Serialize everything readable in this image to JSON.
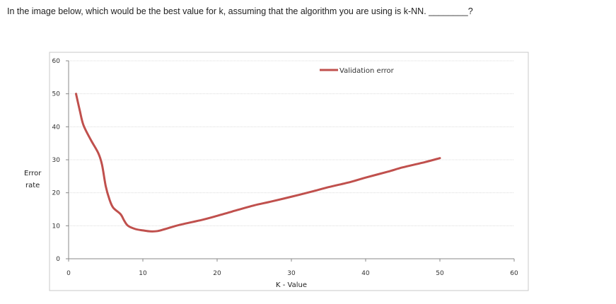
{
  "question": {
    "text": "In the image below, which would be the best value for k, assuming that the algorithm you are using is k-NN. ________?"
  },
  "chart_data": {
    "type": "line",
    "xlabel": "K - Value",
    "ylabel_line1": "Error",
    "ylabel_line2": "rate",
    "xlim": [
      0,
      60
    ],
    "ylim": [
      0,
      60
    ],
    "x_ticks": [
      0,
      10,
      20,
      30,
      40,
      50,
      60
    ],
    "y_ticks": [
      0,
      10,
      20,
      30,
      40,
      50,
      60
    ],
    "grid": true,
    "legend_position": "top-right",
    "line_color": "#c0504d",
    "series": [
      {
        "name": "Validation error",
        "points": [
          [
            1,
            50
          ],
          [
            1.5,
            45
          ],
          [
            2,
            40.5
          ],
          [
            3,
            36
          ],
          [
            4,
            32
          ],
          [
            4.5,
            28.5
          ],
          [
            5,
            22
          ],
          [
            5.5,
            18
          ],
          [
            6,
            15.5
          ],
          [
            7,
            13.5
          ],
          [
            7.5,
            11.5
          ],
          [
            8,
            10
          ],
          [
            9,
            9
          ],
          [
            10,
            8.6
          ],
          [
            11,
            8.3
          ],
          [
            12,
            8.4
          ],
          [
            13,
            9
          ],
          [
            15,
            10.3
          ],
          [
            18,
            11.8
          ],
          [
            20,
            13
          ],
          [
            22,
            14.3
          ],
          [
            25,
            16.2
          ],
          [
            27,
            17.2
          ],
          [
            30,
            18.8
          ],
          [
            33,
            20.5
          ],
          [
            35,
            21.7
          ],
          [
            38,
            23.3
          ],
          [
            40,
            24.6
          ],
          [
            43,
            26.4
          ],
          [
            45,
            27.7
          ],
          [
            48,
            29.3
          ],
          [
            50,
            30.5
          ]
        ]
      }
    ]
  }
}
